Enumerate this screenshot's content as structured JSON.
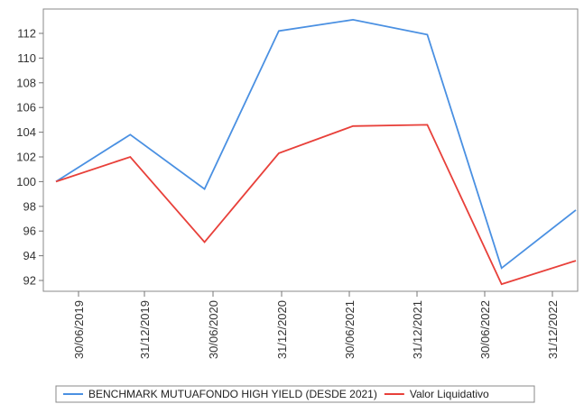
{
  "chart_data": {
    "type": "line",
    "x": [
      "30/06/2019",
      "31/12/2019",
      "30/06/2020",
      "31/12/2020",
      "30/06/2021",
      "31/12/2021",
      "30/06/2022",
      "31/12/2022"
    ],
    "ylim": [
      91,
      113.5
    ],
    "yticks": [
      92,
      94,
      96,
      98,
      100,
      102,
      104,
      106,
      108,
      110,
      112
    ],
    "grid": false,
    "legend_position": "bottom",
    "series": [
      {
        "name": "BENCHMARK MUTUAFONDO HIGH YIELD (DESDE 2021)",
        "color": "#4a90e2",
        "values": [
          100.0,
          103.8,
          99.4,
          112.2,
          113.1,
          111.9,
          93.0,
          97.7
        ]
      },
      {
        "name": "Valor Liquidativo",
        "color": "#e8403a",
        "values": [
          100.0,
          102.0,
          95.1,
          102.3,
          104.5,
          104.6,
          91.7,
          93.6
        ]
      }
    ]
  }
}
